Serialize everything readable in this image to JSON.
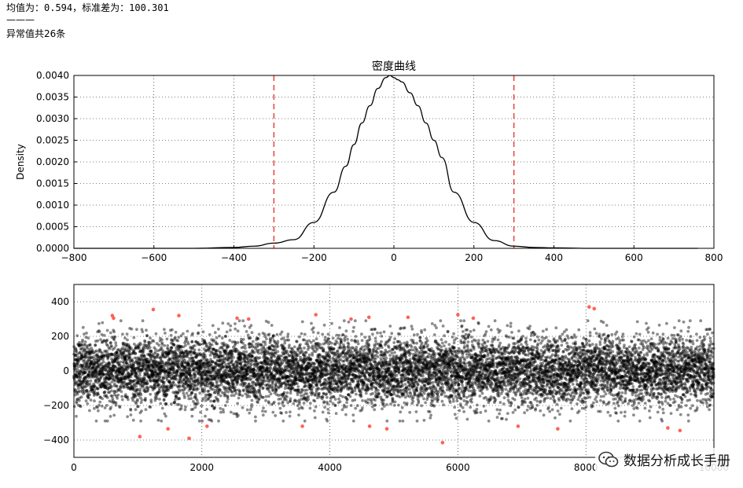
{
  "summary": {
    "mean_std_line": "均值为：0.594，标准差为：100.301",
    "separator": "———",
    "outlier_count_line": "异常值共26条"
  },
  "watermark": {
    "text": "数据分析成长手册",
    "icon": "wechat-icon"
  },
  "colors": {
    "density_line": "#000000",
    "threshold": "#e8413c",
    "normal_point": "#000000",
    "outlier_point": "#ff3b30"
  },
  "chart_data": [
    {
      "type": "line",
      "title": "密度曲线",
      "xlabel": "",
      "ylabel": "Density",
      "xlim": [
        -800,
        800
      ],
      "ylim": [
        0,
        0.004
      ],
      "grid": true,
      "xticks": [
        "−800",
        "−600",
        "−400",
        "−200",
        "0",
        "200",
        "400",
        "600",
        "800"
      ],
      "yticks": [
        "0.0000",
        "0.0005",
        "0.0010",
        "0.0015",
        "0.0020",
        "0.0025",
        "0.0030",
        "0.0035",
        "0.0040"
      ],
      "series": [
        {
          "x": [
            -800,
            -500,
            -400,
            -350,
            -300,
            -250,
            -200,
            -150,
            -120,
            -100,
            -80,
            -60,
            -40,
            -20,
            -10,
            0,
            10,
            20,
            40,
            60,
            80,
            100,
            120,
            150,
            200,
            250,
            300,
            350,
            400,
            500,
            760
          ],
          "y": [
            0,
            0,
            2e-05,
            5e-05,
            0.00012,
            0.0002,
            0.0006,
            0.0013,
            0.0019,
            0.0024,
            0.0029,
            0.0033,
            0.0037,
            0.00395,
            0.004,
            0.00395,
            0.0039,
            0.00385,
            0.0036,
            0.0033,
            0.0029,
            0.0025,
            0.0021,
            0.0013,
            0.0006,
            0.00018,
            5e-05,
            2e-05,
            1e-05,
            0,
            0
          ]
        }
      ],
      "threshold_lines": [
        -300,
        300
      ]
    },
    {
      "type": "scatter",
      "title": "",
      "xlabel": "",
      "ylabel": "",
      "xlim": [
        0,
        10000
      ],
      "ylim": [
        -500,
        500
      ],
      "grid": true,
      "xticks": [
        "0",
        "2000",
        "4000",
        "6000",
        "8000",
        "10000"
      ],
      "yticks": [
        "−400",
        "−200",
        "0",
        "200",
        "400"
      ],
      "normal_points": {
        "count": 10000,
        "mean": 0.594,
        "std": 100.301
      },
      "outliers": [
        {
          "x": 600,
          "y": 320
        },
        {
          "x": 620,
          "y": 305
        },
        {
          "x": 1030,
          "y": -380
        },
        {
          "x": 1240,
          "y": 355
        },
        {
          "x": 1470,
          "y": -335
        },
        {
          "x": 1640,
          "y": 320
        },
        {
          "x": 1800,
          "y": -390
        },
        {
          "x": 2080,
          "y": -320
        },
        {
          "x": 2550,
          "y": 305
        },
        {
          "x": 2730,
          "y": 300
        },
        {
          "x": 3570,
          "y": -320
        },
        {
          "x": 3780,
          "y": 325
        },
        {
          "x": 4330,
          "y": 300
        },
        {
          "x": 4610,
          "y": 310
        },
        {
          "x": 4620,
          "y": -320
        },
        {
          "x": 4890,
          "y": -335
        },
        {
          "x": 5220,
          "y": 310
        },
        {
          "x": 5760,
          "y": -415
        },
        {
          "x": 6000,
          "y": 325
        },
        {
          "x": 6240,
          "y": 305
        },
        {
          "x": 6940,
          "y": -320
        },
        {
          "x": 7560,
          "y": -335
        },
        {
          "x": 8050,
          "y": 370
        },
        {
          "x": 8130,
          "y": 360
        },
        {
          "x": 9280,
          "y": -330
        },
        {
          "x": 9470,
          "y": -345
        }
      ]
    }
  ]
}
